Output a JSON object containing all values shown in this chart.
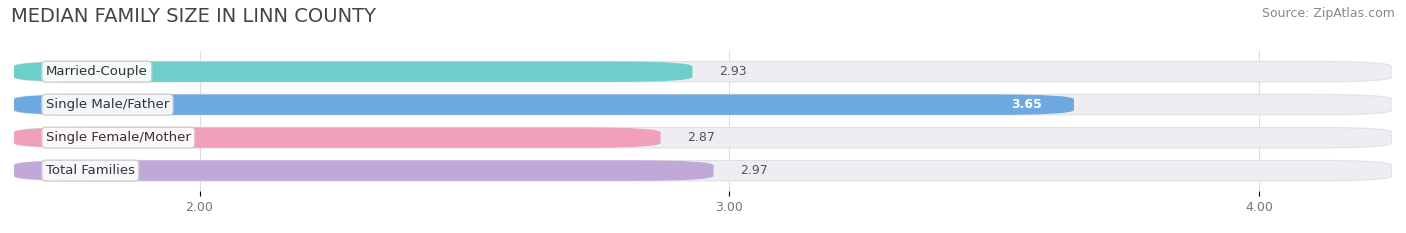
{
  "title": "MEDIAN FAMILY SIZE IN LINN COUNTY",
  "source": "Source: ZipAtlas.com",
  "categories": [
    "Married-Couple",
    "Single Male/Father",
    "Single Female/Mother",
    "Total Families"
  ],
  "values": [
    2.93,
    3.65,
    2.87,
    2.97
  ],
  "bar_colors": [
    "#6ecfca",
    "#6da8e0",
    "#f0a0bb",
    "#c0a8d8"
  ],
  "xlim_data": [
    1.65,
    4.25
  ],
  "xmin": 1.65,
  "xticks": [
    2.0,
    3.0,
    4.0
  ],
  "xtick_labels": [
    "2.00",
    "3.00",
    "4.00"
  ],
  "background_color": "#ffffff",
  "bar_bg_color": "#ededf2",
  "row_bg_color": "#f5f5f8",
  "title_fontsize": 14,
  "label_fontsize": 9.5,
  "value_fontsize": 9,
  "source_fontsize": 9,
  "bar_height": 0.62,
  "value_365_color": "#ffffff",
  "value_other_color": "#555555"
}
